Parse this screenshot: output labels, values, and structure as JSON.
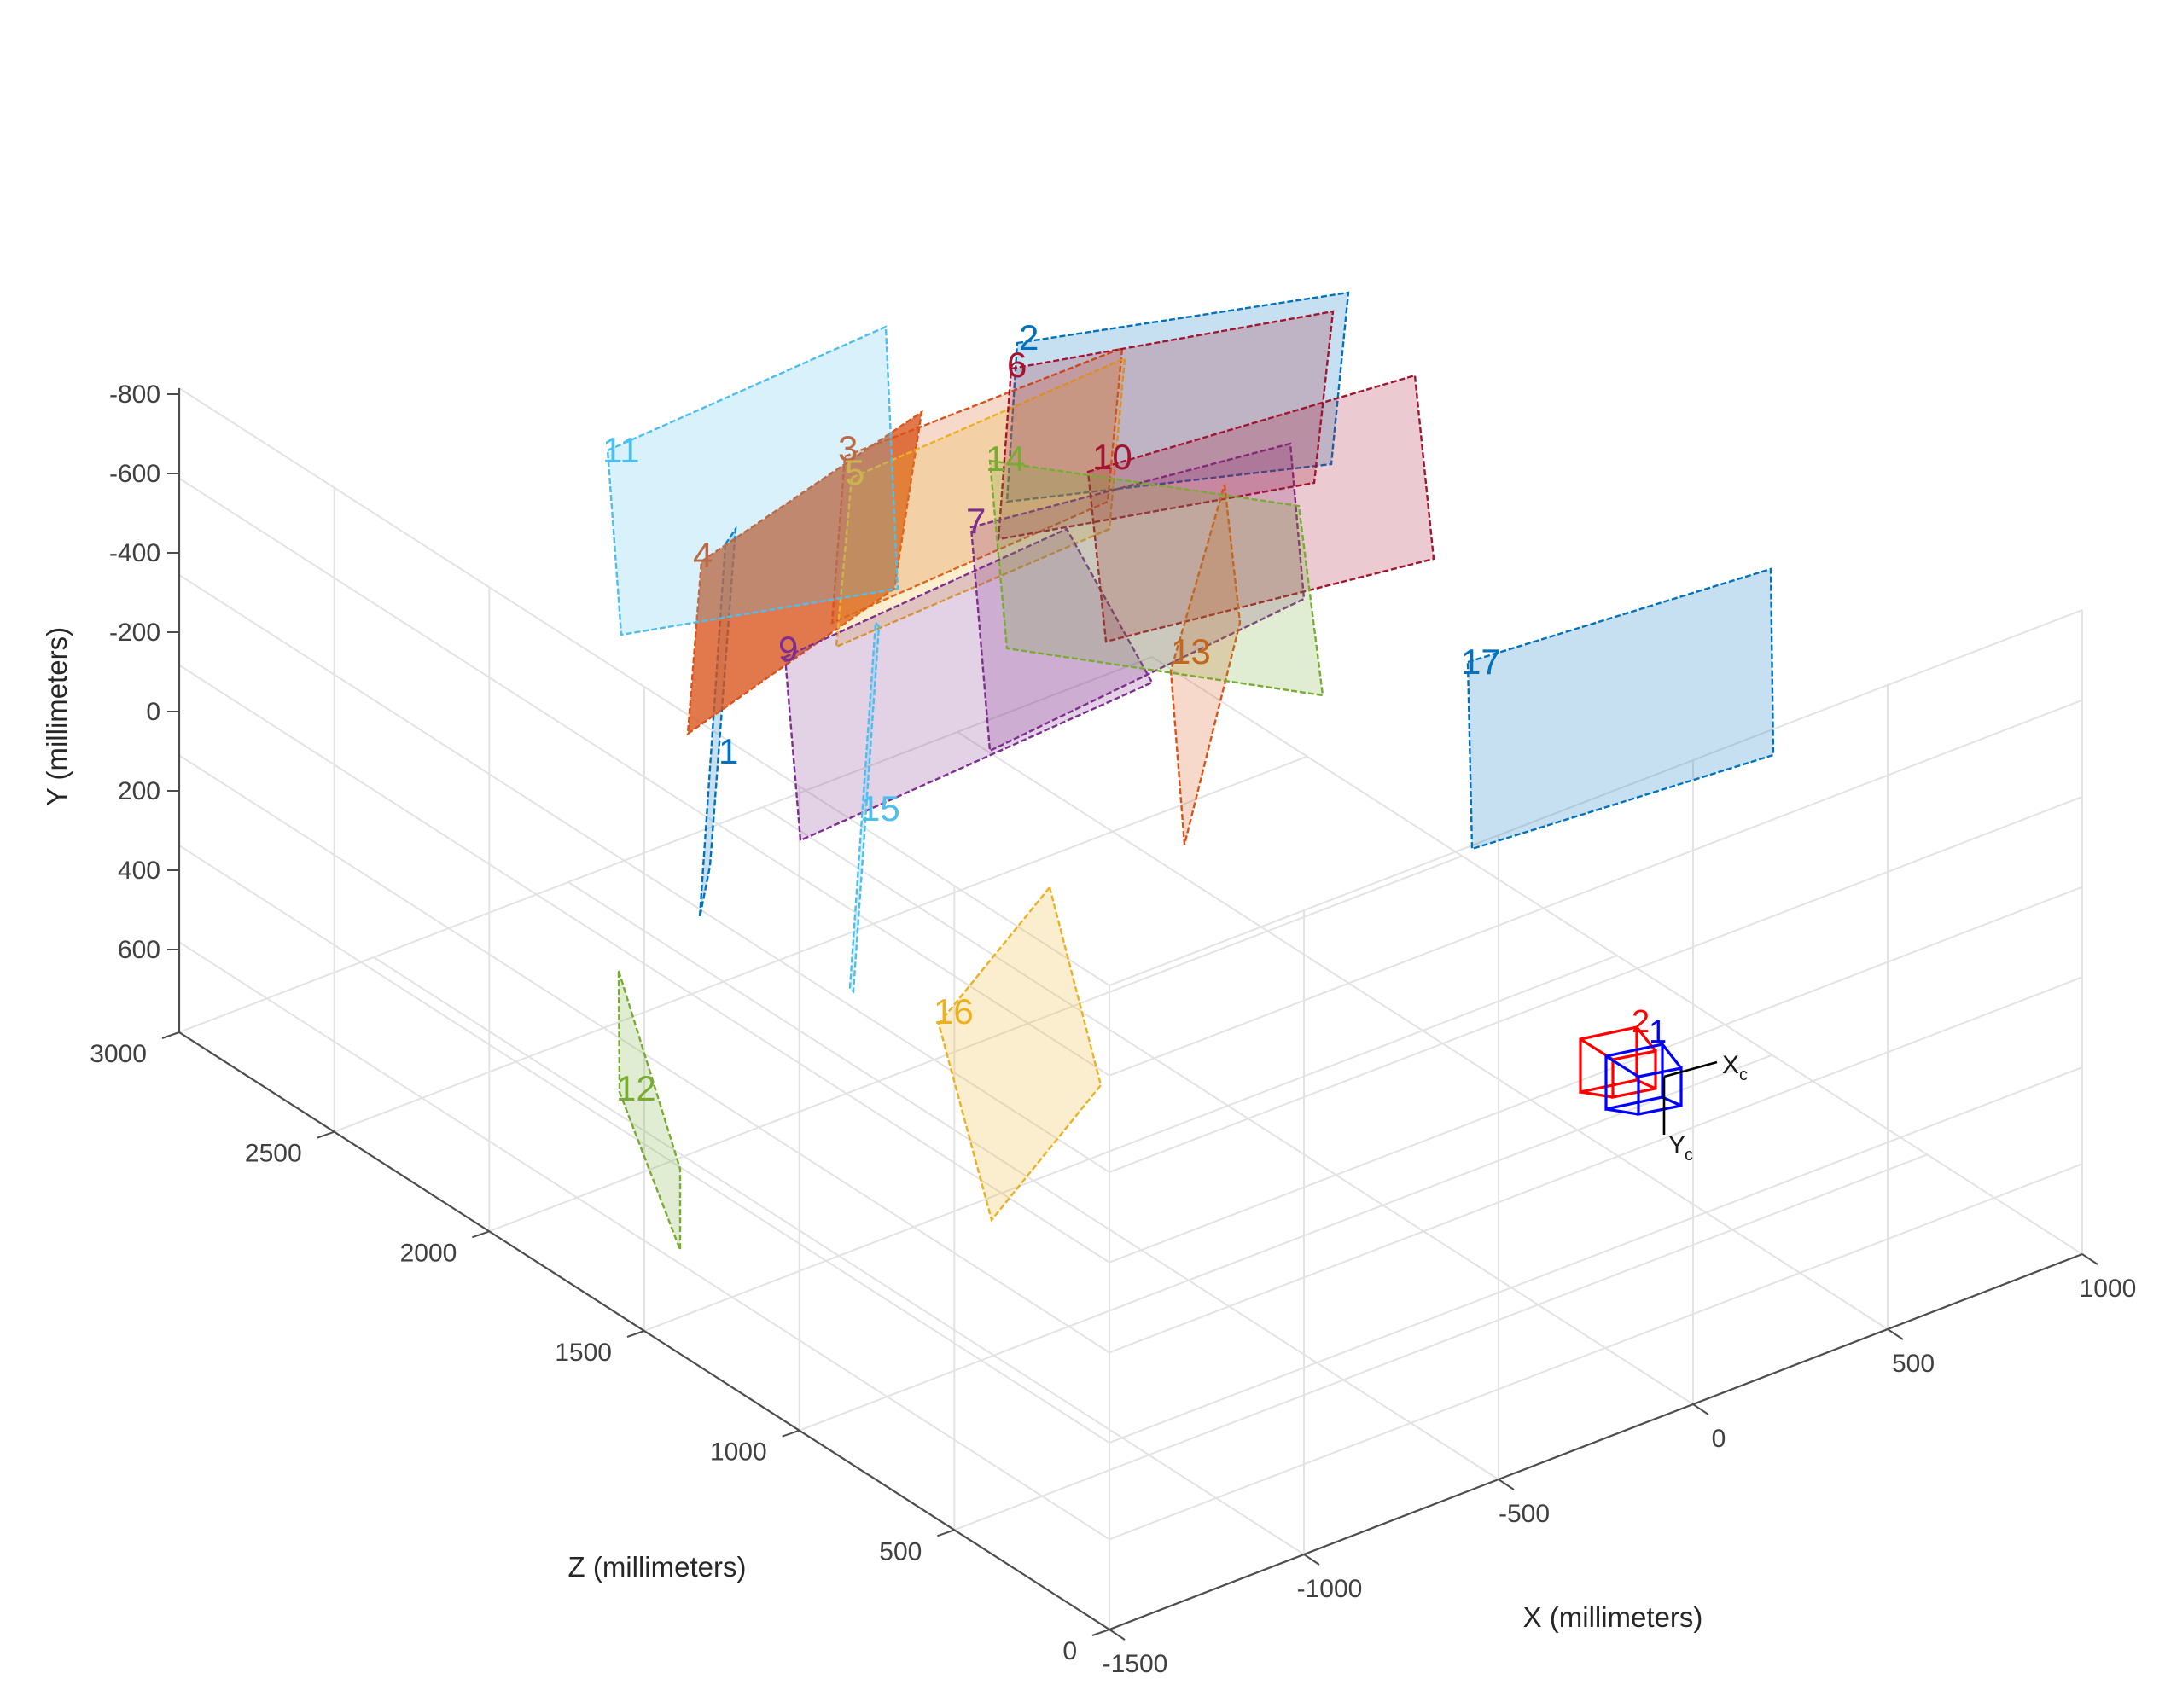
{
  "chart_data": {
    "type": "3d-extrinsics",
    "axes": {
      "x": {
        "label": "X (millimeters)",
        "ticks": [
          "-1500",
          "-1000",
          "-500",
          "0",
          "500",
          "1000"
        ]
      },
      "y": {
        "label": "Y (millimeters)",
        "ticks": [
          "-800",
          "-600",
          "-400",
          "-200",
          "0",
          "200",
          "400",
          "600"
        ],
        "reversed": true
      },
      "z": {
        "label": "Z (millimeters)",
        "ticks": [
          "0",
          "500",
          "1000",
          "1500",
          "2000",
          "2500",
          "3000"
        ]
      }
    },
    "grid": true,
    "patterns": [
      {
        "label": "1",
        "color": "#0072BD"
      },
      {
        "label": "2",
        "color": "#0072BD"
      },
      {
        "label": "3",
        "color": "#D95319"
      },
      {
        "label": "4",
        "color": "#D95319"
      },
      {
        "label": "5",
        "color": "#EDB120"
      },
      {
        "label": "6",
        "color": "#A2142F"
      },
      {
        "label": "7",
        "color": "#7E2F8E"
      },
      {
        "label": "9",
        "color": "#7E2F8E"
      },
      {
        "label": "10",
        "color": "#A2142F"
      },
      {
        "label": "11",
        "color": "#4DBEEE"
      },
      {
        "label": "12",
        "color": "#77AC30"
      },
      {
        "label": "13",
        "color": "#D95319"
      },
      {
        "label": "14",
        "color": "#77AC30"
      },
      {
        "label": "15",
        "color": "#4DBEEE"
      },
      {
        "label": "16",
        "color": "#EDB120"
      },
      {
        "label": "17",
        "color": "#0072BD"
      }
    ],
    "cameras": [
      {
        "label": "2",
        "color": "#FF0000"
      },
      {
        "label": "1",
        "color": "#0000FF"
      }
    ],
    "camera_axes": {
      "x_main": "X",
      "x_sub": "c",
      "y_main": "Y",
      "y_sub": "c"
    }
  }
}
